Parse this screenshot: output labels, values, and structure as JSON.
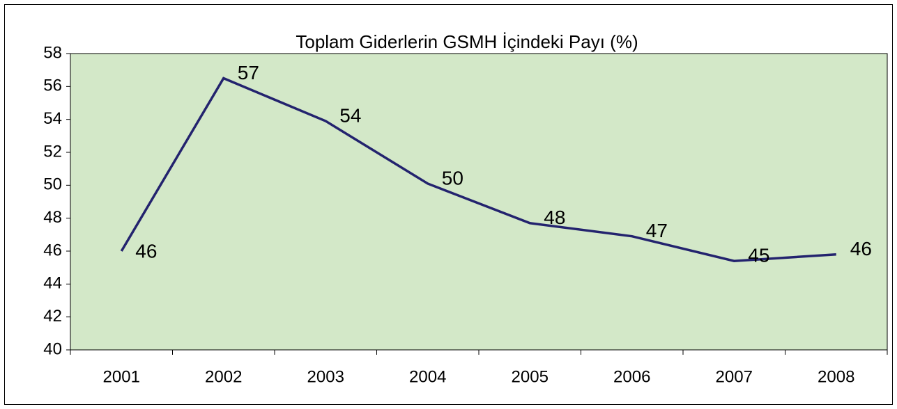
{
  "chart_data": {
    "type": "line",
    "title": "Toplam Giderlerin GSMH İçindeki Payı (%)",
    "categories": [
      "2001",
      "2002",
      "2003",
      "2004",
      "2005",
      "2006",
      "2007",
      "2008"
    ],
    "series": [
      {
        "color": "#23236e",
        "values": [
          46.0,
          56.5,
          53.9,
          50.1,
          47.7,
          46.9,
          45.4,
          45.8
        ],
        "value_labels": [
          "46",
          "57",
          "54",
          "50",
          "48",
          "47",
          "45",
          "46"
        ]
      }
    ],
    "ylim": [
      40,
      58
    ],
    "yticks": [
      40,
      42,
      44,
      46,
      48,
      50,
      52,
      54,
      56,
      58
    ],
    "plot_background": "#d3e8c8"
  }
}
